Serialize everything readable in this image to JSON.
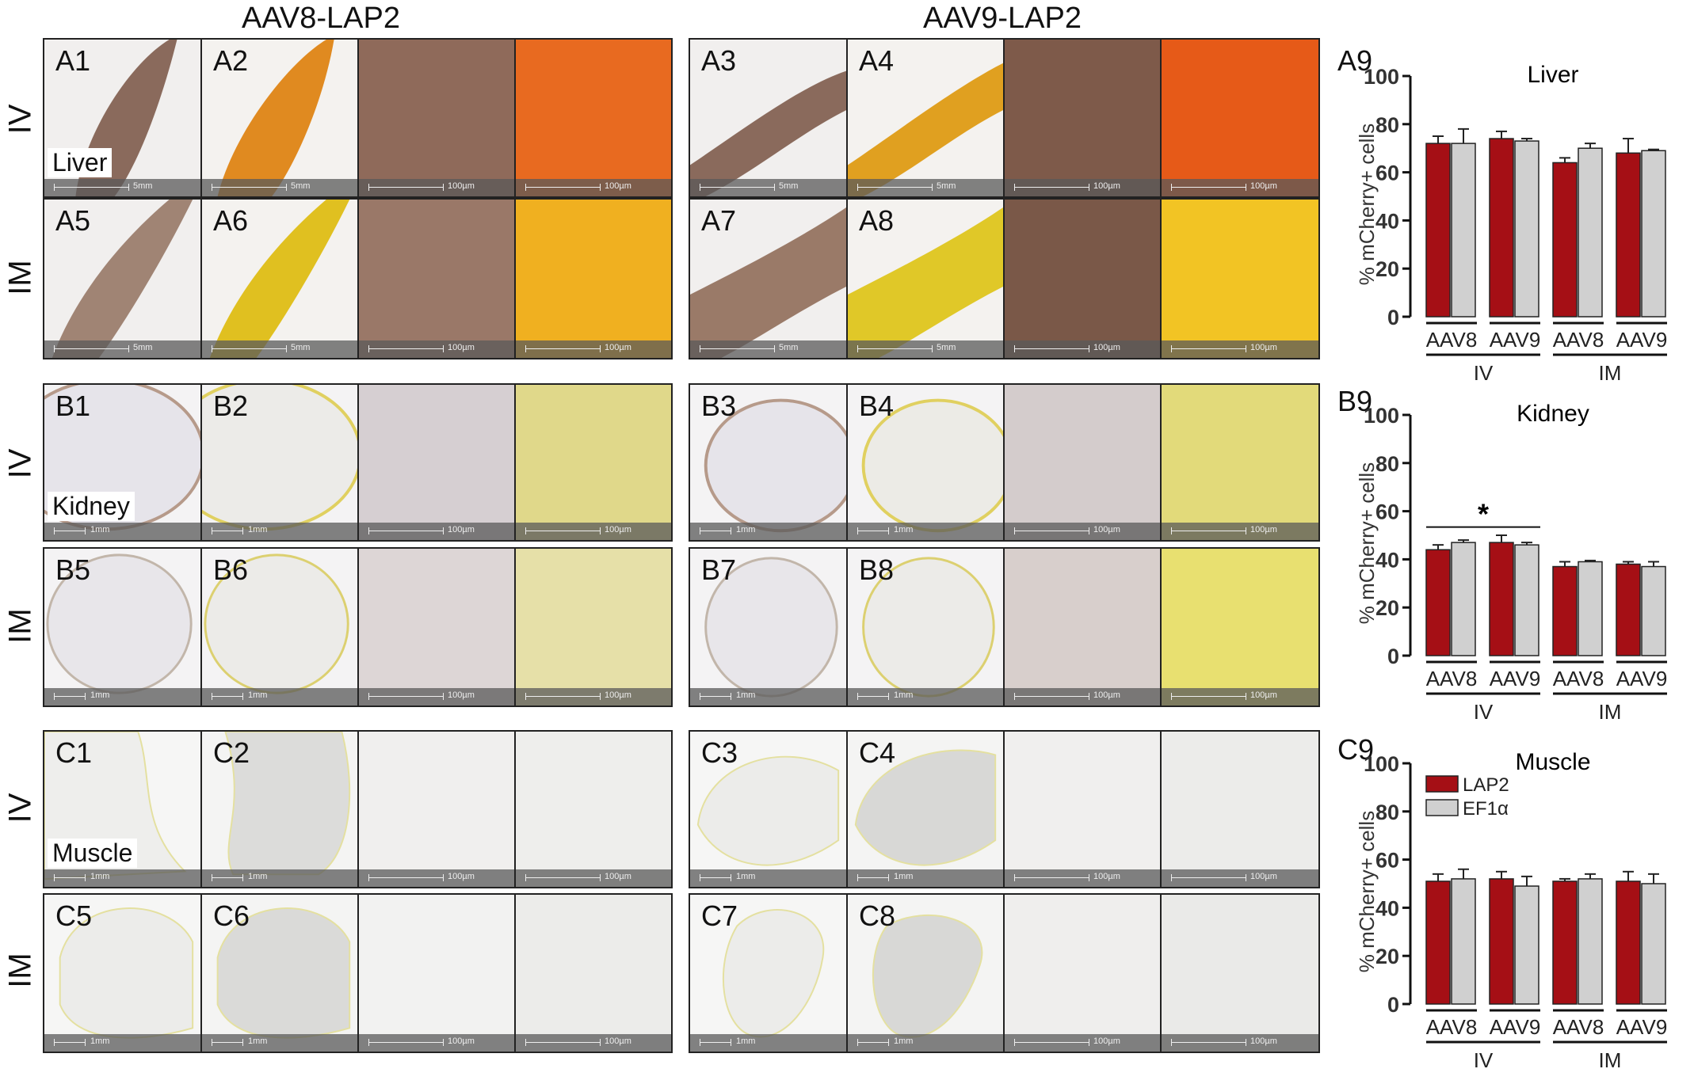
{
  "column_titles": [
    "AAV8-LAP2",
    "AAV9-LAP2"
  ],
  "route_labels": {
    "iv": "IV",
    "im": "IM"
  },
  "organ_labels": {
    "liver": "Liver",
    "kidney": "Kidney",
    "muscle": "Muscle"
  },
  "panels": {
    "liver_iv_aav8": [
      "A1",
      "A2"
    ],
    "liver_iv_aav9": [
      "A3",
      "A4"
    ],
    "liver_im_aav8": [
      "A5",
      "A6"
    ],
    "liver_im_aav9": [
      "A7",
      "A8"
    ],
    "kidney_iv_aav8": [
      "B1",
      "B2"
    ],
    "kidney_iv_aav9": [
      "B3",
      "B4"
    ],
    "kidney_im_aav8": [
      "B5",
      "B6"
    ],
    "kidney_im_aav9": [
      "B7",
      "B8"
    ],
    "muscle_iv_aav8": [
      "C1",
      "C2"
    ],
    "muscle_iv_aav9": [
      "C3",
      "C4"
    ],
    "muscle_im_aav8": [
      "C5",
      "C6"
    ],
    "muscle_im_aav9": [
      "C7",
      "C8"
    ]
  },
  "scale_bars": {
    "liver_low": "5mm",
    "organ_low": "1mm",
    "high": "100µm"
  },
  "colors": {
    "lap2": "#a50f15",
    "ef1a": "#d0d0d0",
    "axis": "#111111"
  },
  "chart_data": [
    {
      "panel_label": "A9",
      "type": "bar",
      "title": "Liver",
      "ylabel": "% mCherry+ cells",
      "ylim": [
        0,
        100
      ],
      "yticks": [
        0,
        20,
        40,
        60,
        80,
        100
      ],
      "categories": [
        "AAV8",
        "AAV9",
        "AAV8",
        "AAV9"
      ],
      "groups": [
        "IV",
        "IM"
      ],
      "series": [
        {
          "name": "LAP2",
          "values": [
            72,
            74,
            64,
            68
          ],
          "errors": [
            3,
            3,
            2,
            6
          ]
        },
        {
          "name": "EF1α",
          "values": [
            72,
            73,
            70,
            69
          ],
          "errors": [
            6,
            1,
            2,
            0.5
          ]
        }
      ],
      "significance": []
    },
    {
      "panel_label": "B9",
      "type": "bar",
      "title": "Kidney",
      "ylabel": "% mCherry+ cells",
      "ylim": [
        0,
        100
      ],
      "yticks": [
        0,
        20,
        40,
        60,
        80,
        100
      ],
      "categories": [
        "AAV8",
        "AAV9",
        "AAV8",
        "AAV9"
      ],
      "groups": [
        "IV",
        "IM"
      ],
      "series": [
        {
          "name": "LAP2",
          "values": [
            44,
            47,
            37,
            38
          ],
          "errors": [
            2,
            3,
            2,
            1
          ]
        },
        {
          "name": "EF1α",
          "values": [
            47,
            46,
            39,
            37
          ],
          "errors": [
            1,
            1,
            0.5,
            2
          ]
        }
      ],
      "significance": [
        {
          "label": "*",
          "from": 0,
          "to": 1
        }
      ]
    },
    {
      "panel_label": "C9",
      "type": "bar",
      "title": "Muscle",
      "ylabel": "% mCherry+ cells",
      "ylim": [
        0,
        100
      ],
      "yticks": [
        0,
        20,
        40,
        60,
        80,
        100
      ],
      "categories": [
        "AAV8",
        "AAV9",
        "AAV8",
        "AAV9"
      ],
      "groups": [
        "IV",
        "IM"
      ],
      "legend": [
        "LAP2",
        "EF1α"
      ],
      "legend_position": "top-left",
      "series": [
        {
          "name": "LAP2",
          "values": [
            51,
            52,
            51,
            51
          ],
          "errors": [
            3,
            3,
            1,
            4
          ]
        },
        {
          "name": "EF1α",
          "values": [
            52,
            49,
            52,
            50
          ],
          "errors": [
            4,
            4,
            2,
            4
          ]
        }
      ],
      "significance": []
    }
  ]
}
